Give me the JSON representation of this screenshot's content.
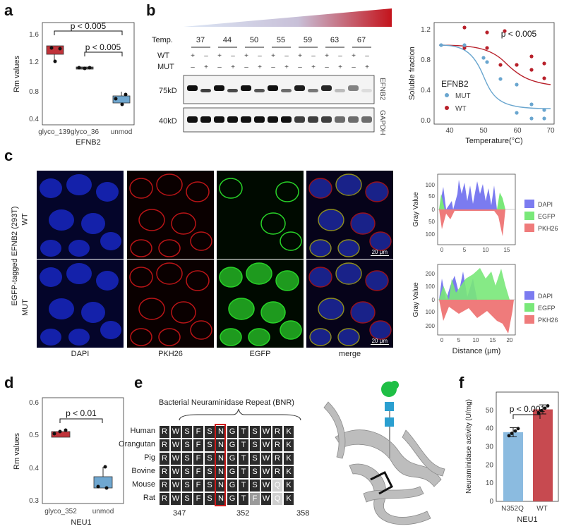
{
  "panel_labels": [
    "a",
    "b",
    "c",
    "d",
    "e",
    "f"
  ],
  "panel_a": {
    "ylabel": "Rm values",
    "xlabel": "EFNB2",
    "yticks": [
      "0.4",
      "0.8",
      "1.2",
      "1.6"
    ],
    "categories": [
      "glyco_139",
      "glyco_36",
      "unmod"
    ],
    "sig1": "p < 0.005",
    "sig2": "p < 0.005",
    "colors": {
      "glyco_139": "#c0333a",
      "glyco_36": "#555555",
      "unmod": "#6fa7d0"
    }
  },
  "panel_b_blot": {
    "temp_label": "Temp.",
    "temps": [
      "37",
      "44",
      "50",
      "55",
      "59",
      "63",
      "67"
    ],
    "wt_label": "WT",
    "mut_label": "MUT",
    "signs": [
      "+",
      "–"
    ],
    "kd75": "75kD",
    "kd40": "40kD",
    "efnb2": "EFNB2",
    "gapdh": "GAPDH"
  },
  "panel_b_curve": {
    "ylabel": "Soluble fraction",
    "xlabel": "Temperature(°C)",
    "sig": "p < 0.005",
    "legend_title": "EFNB2",
    "legend": [
      {
        "name": "MUT",
        "color": "#6aa6cf"
      },
      {
        "name": "WT",
        "color": "#b8202a"
      }
    ],
    "xticks": [
      "40",
      "50",
      "60",
      "70"
    ],
    "yticks": [
      "0.0",
      "0.4",
      "0.8",
      "1.2"
    ]
  },
  "panel_c": {
    "side_label": "EGFP-tagged EFNB2 (293T)",
    "row_labels": [
      "WT",
      "MUT"
    ],
    "col_labels": [
      "DAPI",
      "PKH26",
      "EGFP",
      "merge"
    ],
    "scale": "20 μm",
    "profile": {
      "ylabel": "Gray Value",
      "xlabel": "Distance (μm)",
      "legend": [
        {
          "name": "DAPI",
          "color": "#7b7bf0"
        },
        {
          "name": "EGFP",
          "color": "#79e879"
        },
        {
          "name": "PKH26",
          "color": "#ef7b7b"
        }
      ],
      "top_yticks": [
        "100",
        "50",
        "0",
        "50",
        "100"
      ],
      "top_xticks": [
        "0",
        "5",
        "10",
        "15"
      ],
      "bot_yticks": [
        "200",
        "100",
        "0",
        "100",
        "200"
      ],
      "bot_xticks": [
        "0",
        "5",
        "10",
        "15",
        "20"
      ]
    }
  },
  "panel_d": {
    "ylabel": "Rm values",
    "xlabel": "NEU1",
    "yticks": [
      "0.3",
      "0.4",
      "0.5",
      "0.6"
    ],
    "categories": [
      "glyco_352",
      "unmod"
    ],
    "sig": "p < 0.01"
  },
  "panel_e": {
    "title": "Bacterial Neuraminidase Repeat (BNR)",
    "species": [
      "Human",
      "Orangutan",
      "Pig",
      "Bovine",
      "Mouse",
      "Rat"
    ],
    "rows": [
      [
        "R",
        "W",
        "S",
        "F",
        "S",
        "N",
        "G",
        "T",
        "S",
        "W",
        "R",
        "K"
      ],
      [
        "R",
        "W",
        "S",
        "F",
        "S",
        "N",
        "G",
        "T",
        "S",
        "W",
        "R",
        "K"
      ],
      [
        "R",
        "W",
        "S",
        "F",
        "S",
        "N",
        "G",
        "T",
        "S",
        "W",
        "R",
        "K"
      ],
      [
        "R",
        "W",
        "S",
        "F",
        "S",
        "N",
        "G",
        "T",
        "S",
        "W",
        "R",
        "K"
      ],
      [
        "R",
        "W",
        "S",
        "F",
        "S",
        "N",
        "G",
        "T",
        "S",
        "W",
        "Q",
        "K"
      ],
      [
        "R",
        "W",
        "S",
        "F",
        "S",
        "N",
        "G",
        "T",
        "F",
        "W",
        "Q",
        "K"
      ]
    ],
    "positions": [
      "347",
      "352",
      "358"
    ]
  },
  "panel_f": {
    "ylabel": "Neuraminidase activity (U/mg)",
    "xlabel": "NEU1",
    "categories": [
      "N352Q",
      "WT"
    ],
    "yticks": [
      "0",
      "10",
      "20",
      "30",
      "40",
      "50"
    ],
    "sig": "p < 0.001",
    "chart_data": {
      "type": "bar",
      "categories": [
        "N352Q",
        "WT"
      ],
      "values": [
        38,
        50.5
      ],
      "ylim": [
        0,
        60
      ]
    }
  }
}
